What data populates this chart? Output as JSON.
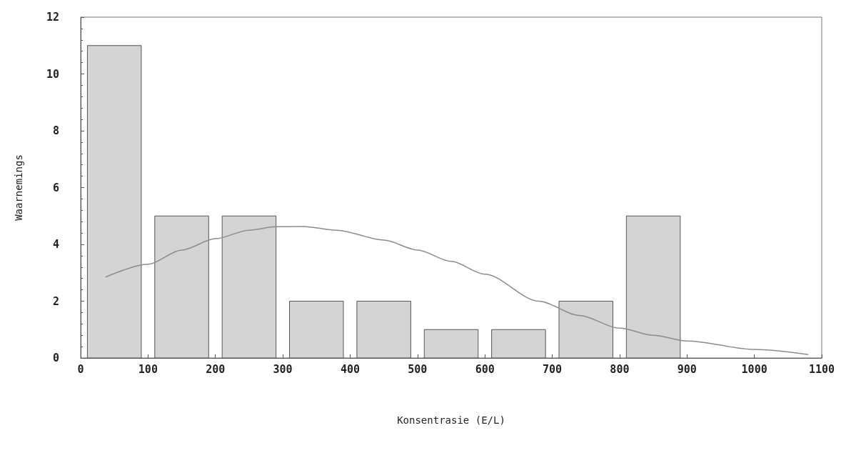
{
  "chart_data": {
    "type": "histogram",
    "xlabel": "Konsentrasie (E/L)",
    "ylabel": "Waarnemings",
    "bins": [
      0,
      100,
      200,
      300,
      400,
      500,
      600,
      700,
      800,
      900
    ],
    "values": [
      11,
      5,
      5,
      2,
      2,
      1,
      1,
      2,
      5
    ],
    "color": "#d4d4d4",
    "series": [
      {
        "type": "line",
        "color": "#8c8c8c",
        "x": [
          37,
          100,
          150,
          200,
          250,
          290,
          330,
          380,
          450,
          500,
          550,
          600,
          680,
          740,
          800,
          850,
          900,
          1000,
          1080
        ],
        "values": [
          2.85,
          3.3,
          3.8,
          4.2,
          4.5,
          4.62,
          4.63,
          4.5,
          4.15,
          3.8,
          3.4,
          2.95,
          2.0,
          1.5,
          1.05,
          0.8,
          0.6,
          0.3,
          0.12
        ]
      }
    ],
    "xlim": [
      0,
      1100
    ],
    "xticks": [
      0,
      100,
      200,
      300,
      400,
      500,
      600,
      700,
      800,
      900,
      1000,
      1100
    ],
    "ylim": [
      0,
      12
    ],
    "yticks": [
      0,
      2,
      4,
      6,
      8,
      10,
      12
    ],
    "grid": false,
    "marker": "none"
  }
}
